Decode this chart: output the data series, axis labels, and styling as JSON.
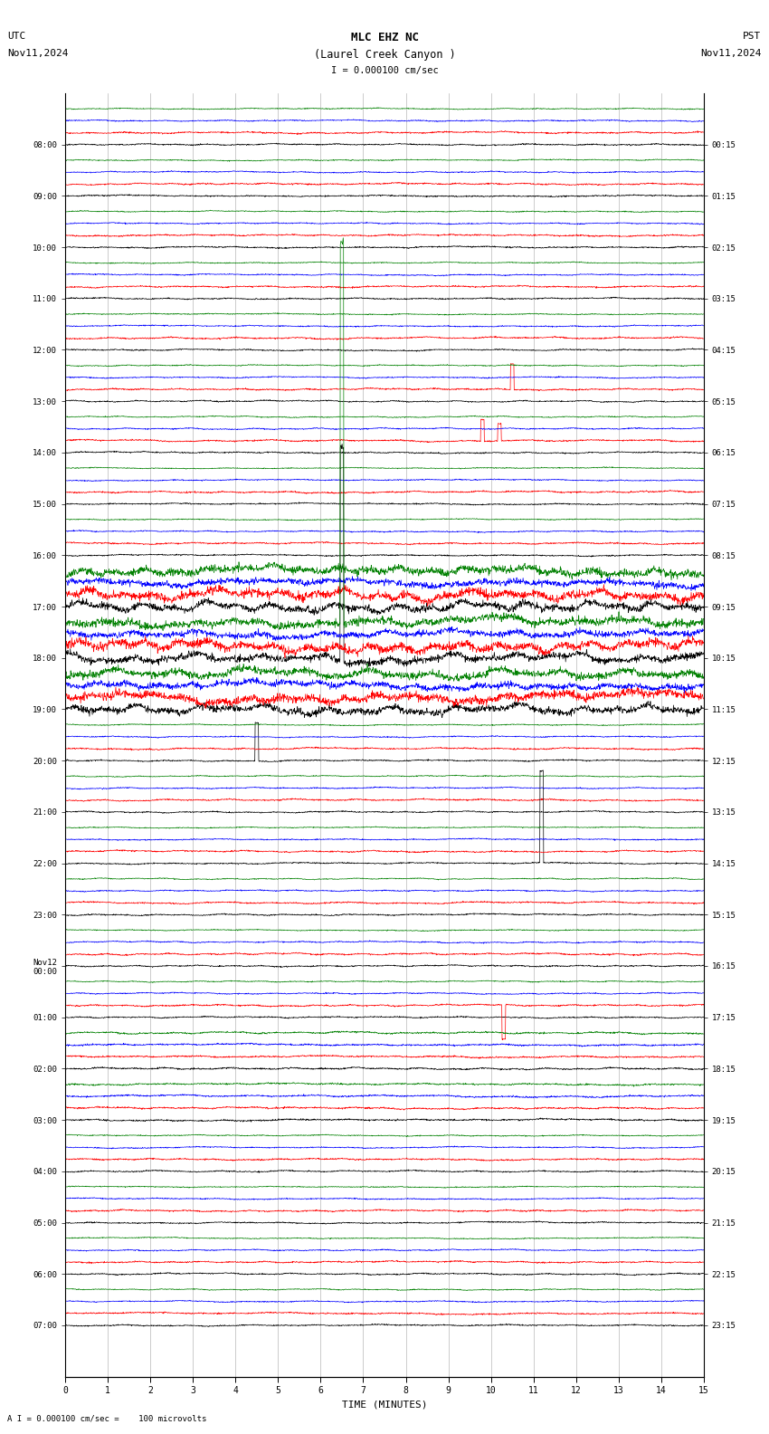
{
  "title_line1": "MLC EHZ NC",
  "title_line2": "(Laurel Creek Canyon )",
  "scale_label": "I = 0.000100 cm/sec",
  "left_header1": "UTC",
  "left_header2": "Nov11,2024",
  "right_header1": "PST",
  "right_header2": "Nov11,2024",
  "bottom_label": "A I = 0.000100 cm/sec =    100 microvolts",
  "xlabel": "TIME (MINUTES)",
  "bg_color": "#ffffff",
  "line_colors": [
    "black",
    "red",
    "blue",
    "green"
  ],
  "utc_labels": [
    "08:00",
    "09:00",
    "10:00",
    "11:00",
    "12:00",
    "13:00",
    "14:00",
    "15:00",
    "16:00",
    "17:00",
    "18:00",
    "19:00",
    "20:00",
    "21:00",
    "22:00",
    "23:00",
    "Nov12\n00:00",
    "01:00",
    "02:00",
    "03:00",
    "04:00",
    "05:00",
    "06:00",
    "07:00"
  ],
  "pst_labels": [
    "00:15",
    "01:15",
    "02:15",
    "03:15",
    "04:15",
    "05:15",
    "06:15",
    "07:15",
    "08:15",
    "09:15",
    "10:15",
    "11:15",
    "12:15",
    "13:15",
    "14:15",
    "15:15",
    "16:15",
    "17:15",
    "18:15",
    "19:15",
    "20:15",
    "21:15",
    "22:15",
    "23:15"
  ],
  "n_groups": 24,
  "minutes_per_row": 15,
  "high_activity_groups": [
    9,
    10,
    11
  ],
  "spike_info": [
    {
      "group": 5,
      "color": "red",
      "t": 10.5,
      "amp": 3.0
    },
    {
      "group": 10,
      "color": "green",
      "t": 6.5,
      "amp": 8.0
    },
    {
      "group": 10,
      "color": "black",
      "t": 6.5,
      "amp": 5.0
    },
    {
      "group": 12,
      "color": "black",
      "t": 4.5,
      "amp": 5.0
    },
    {
      "group": 14,
      "color": "black",
      "t": 11.2,
      "amp": 12.0
    },
    {
      "group": 17,
      "color": "red",
      "t": 10.3,
      "amp": -4.0
    },
    {
      "group": 6,
      "color": "red",
      "t": 9.8,
      "amp": 2.5
    },
    {
      "group": 6,
      "color": "red",
      "t": 10.2,
      "amp": 2.0
    }
  ]
}
